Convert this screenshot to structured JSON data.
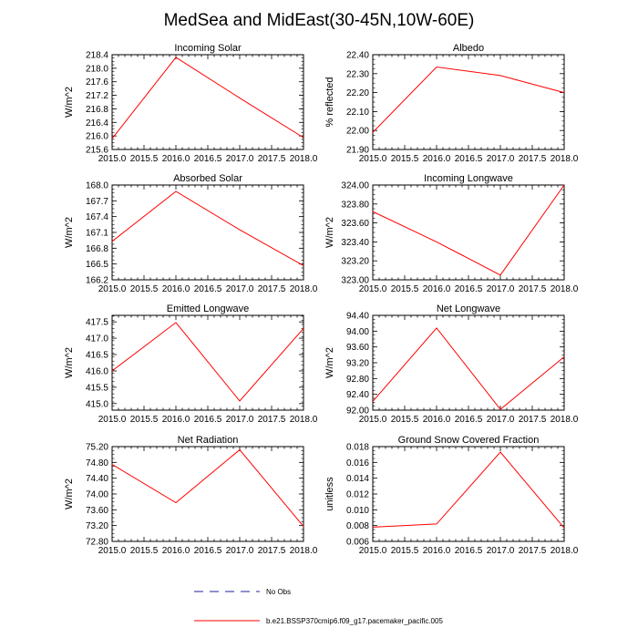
{
  "title": "MedSea and MidEast(30-45N,10W-60E)",
  "colors": {
    "model_line": "#ff0000",
    "obs_line": "#1f1f9f",
    "axis": "#000000"
  },
  "legend": {
    "obs_label": "No Obs",
    "model_label": "b.e21.BSSP370cmip6.f09_g17.pacemaker_pacific.005"
  },
  "chart_data": [
    {
      "type": "line",
      "title": "Incoming Solar",
      "ylabel": "W/m^2",
      "xlabel": "",
      "x": [
        2015,
        2016,
        2017,
        2018
      ],
      "values": [
        215.92,
        218.32,
        217.12,
        215.95
      ],
      "xlim": [
        2015,
        2018
      ],
      "ylim": [
        215.6,
        218.4
      ],
      "xticks": [
        2015.0,
        2015.5,
        2016.0,
        2016.5,
        2017.0,
        2017.5,
        2018.0
      ],
      "xtick_labels": [
        "2015.0",
        "2015.5",
        "2016.0",
        "2016.5",
        "2017.0",
        "2017.5",
        "2018.0"
      ],
      "yticks": [
        215.6,
        216.0,
        216.4,
        216.8,
        217.2,
        217.6,
        218.0,
        218.4
      ],
      "ytick_labels": [
        "215.6",
        "216.0",
        "216.4",
        "216.8",
        "217.2",
        "217.6",
        "218.0",
        "218.4"
      ],
      "series_name": "b.e21.BSSP370cmip6.f09_g17.pacemaker_pacific.005"
    },
    {
      "type": "line",
      "title": "Albedo",
      "ylabel": "% reflected",
      "xlabel": "",
      "x": [
        2015,
        2016,
        2017,
        2018
      ],
      "values": [
        21.99,
        22.335,
        22.29,
        22.2
      ],
      "xlim": [
        2015,
        2018
      ],
      "ylim": [
        21.9,
        22.4
      ],
      "xticks": [
        2015.0,
        2015.5,
        2016.0,
        2016.5,
        2017.0,
        2017.5,
        2018.0
      ],
      "xtick_labels": [
        "2015.0",
        "2015.5",
        "2016.0",
        "2016.5",
        "2017.0",
        "2017.5",
        "2018.0"
      ],
      "yticks": [
        21.9,
        22.0,
        22.1,
        22.2,
        22.3,
        22.4
      ],
      "ytick_labels": [
        "21.90",
        "22.00",
        "22.10",
        "22.20",
        "22.30",
        "22.40"
      ],
      "series_name": "b.e21.BSSP370cmip6.f09_g17.pacemaker_pacific.005"
    },
    {
      "type": "line",
      "title": "Absorbed Solar",
      "ylabel": "W/m^2",
      "xlabel": "",
      "x": [
        2015,
        2016,
        2017,
        2018
      ],
      "values": [
        166.93,
        167.88,
        167.15,
        166.47
      ],
      "xlim": [
        2015,
        2018
      ],
      "ylim": [
        166.2,
        168.0
      ],
      "xticks": [
        2015.0,
        2015.5,
        2016.0,
        2016.5,
        2017.0,
        2017.5,
        2018.0
      ],
      "xtick_labels": [
        "2015.0",
        "2015.5",
        "2016.0",
        "2016.5",
        "2017.0",
        "2017.5",
        "2018.0"
      ],
      "yticks": [
        166.2,
        166.5,
        166.8,
        167.1,
        167.4,
        167.7,
        168.0
      ],
      "ytick_labels": [
        "166.2",
        "166.5",
        "166.8",
        "167.1",
        "167.4",
        "167.7",
        "168.0"
      ],
      "series_name": "b.e21.BSSP370cmip6.f09_g17.pacemaker_pacific.005"
    },
    {
      "type": "line",
      "title": "Incoming Longwave",
      "ylabel": "W/m^2",
      "xlabel": "",
      "x": [
        2015,
        2016,
        2017,
        2018
      ],
      "values": [
        323.72,
        323.4,
        323.05,
        324.0
      ],
      "xlim": [
        2015,
        2018
      ],
      "ylim": [
        323.0,
        324.0
      ],
      "xticks": [
        2015.0,
        2015.5,
        2016.0,
        2016.5,
        2017.0,
        2017.5,
        2018.0
      ],
      "xtick_labels": [
        "2015.0",
        "2015.5",
        "2016.0",
        "2016.5",
        "2017.0",
        "2017.5",
        "2018.0"
      ],
      "yticks": [
        323.0,
        323.2,
        323.4,
        323.6,
        323.8,
        324.0
      ],
      "ytick_labels": [
        "323.00",
        "323.20",
        "323.40",
        "323.60",
        "323.80",
        "324.00"
      ],
      "series_name": "b.e21.BSSP370cmip6.f09_g17.pacemaker_pacific.005"
    },
    {
      "type": "line",
      "title": "Emitted Longwave",
      "ylabel": "W/m^2",
      "xlabel": "",
      "x": [
        2015,
        2016,
        2017,
        2018
      ],
      "values": [
        416.0,
        417.48,
        415.08,
        417.3
      ],
      "xlim": [
        2015,
        2018
      ],
      "ylim": [
        414.8,
        417.7
      ],
      "xticks": [
        2015.0,
        2015.5,
        2016.0,
        2016.5,
        2017.0,
        2017.5,
        2018.0
      ],
      "xtick_labels": [
        "2015.0",
        "2015.5",
        "2016.0",
        "2016.5",
        "2017.0",
        "2017.5",
        "2018.0"
      ],
      "yticks": [
        415.0,
        415.5,
        416.0,
        416.5,
        417.0,
        417.5
      ],
      "ytick_labels": [
        "415.0",
        "415.5",
        "416.0",
        "416.5",
        "417.0",
        "417.5"
      ],
      "series_name": "b.e21.BSSP370cmip6.f09_g17.pacemaker_pacific.005"
    },
    {
      "type": "line",
      "title": "Net Longwave",
      "ylabel": "W/m^2",
      "xlabel": "",
      "x": [
        2015,
        2016,
        2017,
        2018
      ],
      "values": [
        92.22,
        94.08,
        92.02,
        93.35
      ],
      "xlim": [
        2015,
        2018
      ],
      "ylim": [
        92.0,
        94.4
      ],
      "xticks": [
        2015.0,
        2015.5,
        2016.0,
        2016.5,
        2017.0,
        2017.5,
        2018.0
      ],
      "xtick_labels": [
        "2015.0",
        "2015.5",
        "2016.0",
        "2016.5",
        "2017.0",
        "2017.5",
        "2018.0"
      ],
      "yticks": [
        92.0,
        92.4,
        92.8,
        93.2,
        93.6,
        94.0,
        94.4
      ],
      "ytick_labels": [
        "92.00",
        "92.40",
        "92.80",
        "93.20",
        "93.60",
        "94.00",
        "94.40"
      ],
      "series_name": "b.e21.BSSP370cmip6.f09_g17.pacemaker_pacific.005"
    },
    {
      "type": "line",
      "title": "Net Radiation",
      "ylabel": "W/m^2",
      "xlabel": "",
      "x": [
        2015,
        2016,
        2017,
        2018
      ],
      "values": [
        74.75,
        73.78,
        75.12,
        73.18
      ],
      "xlim": [
        2015,
        2018
      ],
      "ylim": [
        72.8,
        75.2
      ],
      "xticks": [
        2015.0,
        2015.5,
        2016.0,
        2016.5,
        2017.0,
        2017.5,
        2018.0
      ],
      "xtick_labels": [
        "2015.0",
        "2015.5",
        "2016.0",
        "2016.5",
        "2017.0",
        "2017.5",
        "2018.0"
      ],
      "yticks": [
        72.8,
        73.2,
        73.6,
        74.0,
        74.4,
        74.8,
        75.2
      ],
      "ytick_labels": [
        "72.80",
        "73.20",
        "73.60",
        "74.00",
        "74.40",
        "74.80",
        "75.20"
      ],
      "series_name": "b.e21.BSSP370cmip6.f09_g17.pacemaker_pacific.005"
    },
    {
      "type": "line",
      "title": "Ground Snow Covered Fraction",
      "ylabel": "unitless",
      "xlabel": "",
      "x": [
        2015,
        2016,
        2017,
        2018
      ],
      "values": [
        0.0078,
        0.0082,
        0.0173,
        0.0077
      ],
      "xlim": [
        2015,
        2018
      ],
      "ylim": [
        0.006,
        0.018
      ],
      "xticks": [
        2015.0,
        2015.5,
        2016.0,
        2016.5,
        2017.0,
        2017.5,
        2018.0
      ],
      "xtick_labels": [
        "2015.0",
        "2015.5",
        "2016.0",
        "2016.5",
        "2017.0",
        "2017.5",
        "2018.0"
      ],
      "yticks": [
        0.006,
        0.008,
        0.01,
        0.012,
        0.014,
        0.016,
        0.018
      ],
      "ytick_labels": [
        "0.006",
        "0.008",
        "0.010",
        "0.012",
        "0.014",
        "0.016",
        "0.018"
      ],
      "series_name": "b.e21.BSSP370cmip6.f09_g17.pacemaker_pacific.005"
    }
  ]
}
